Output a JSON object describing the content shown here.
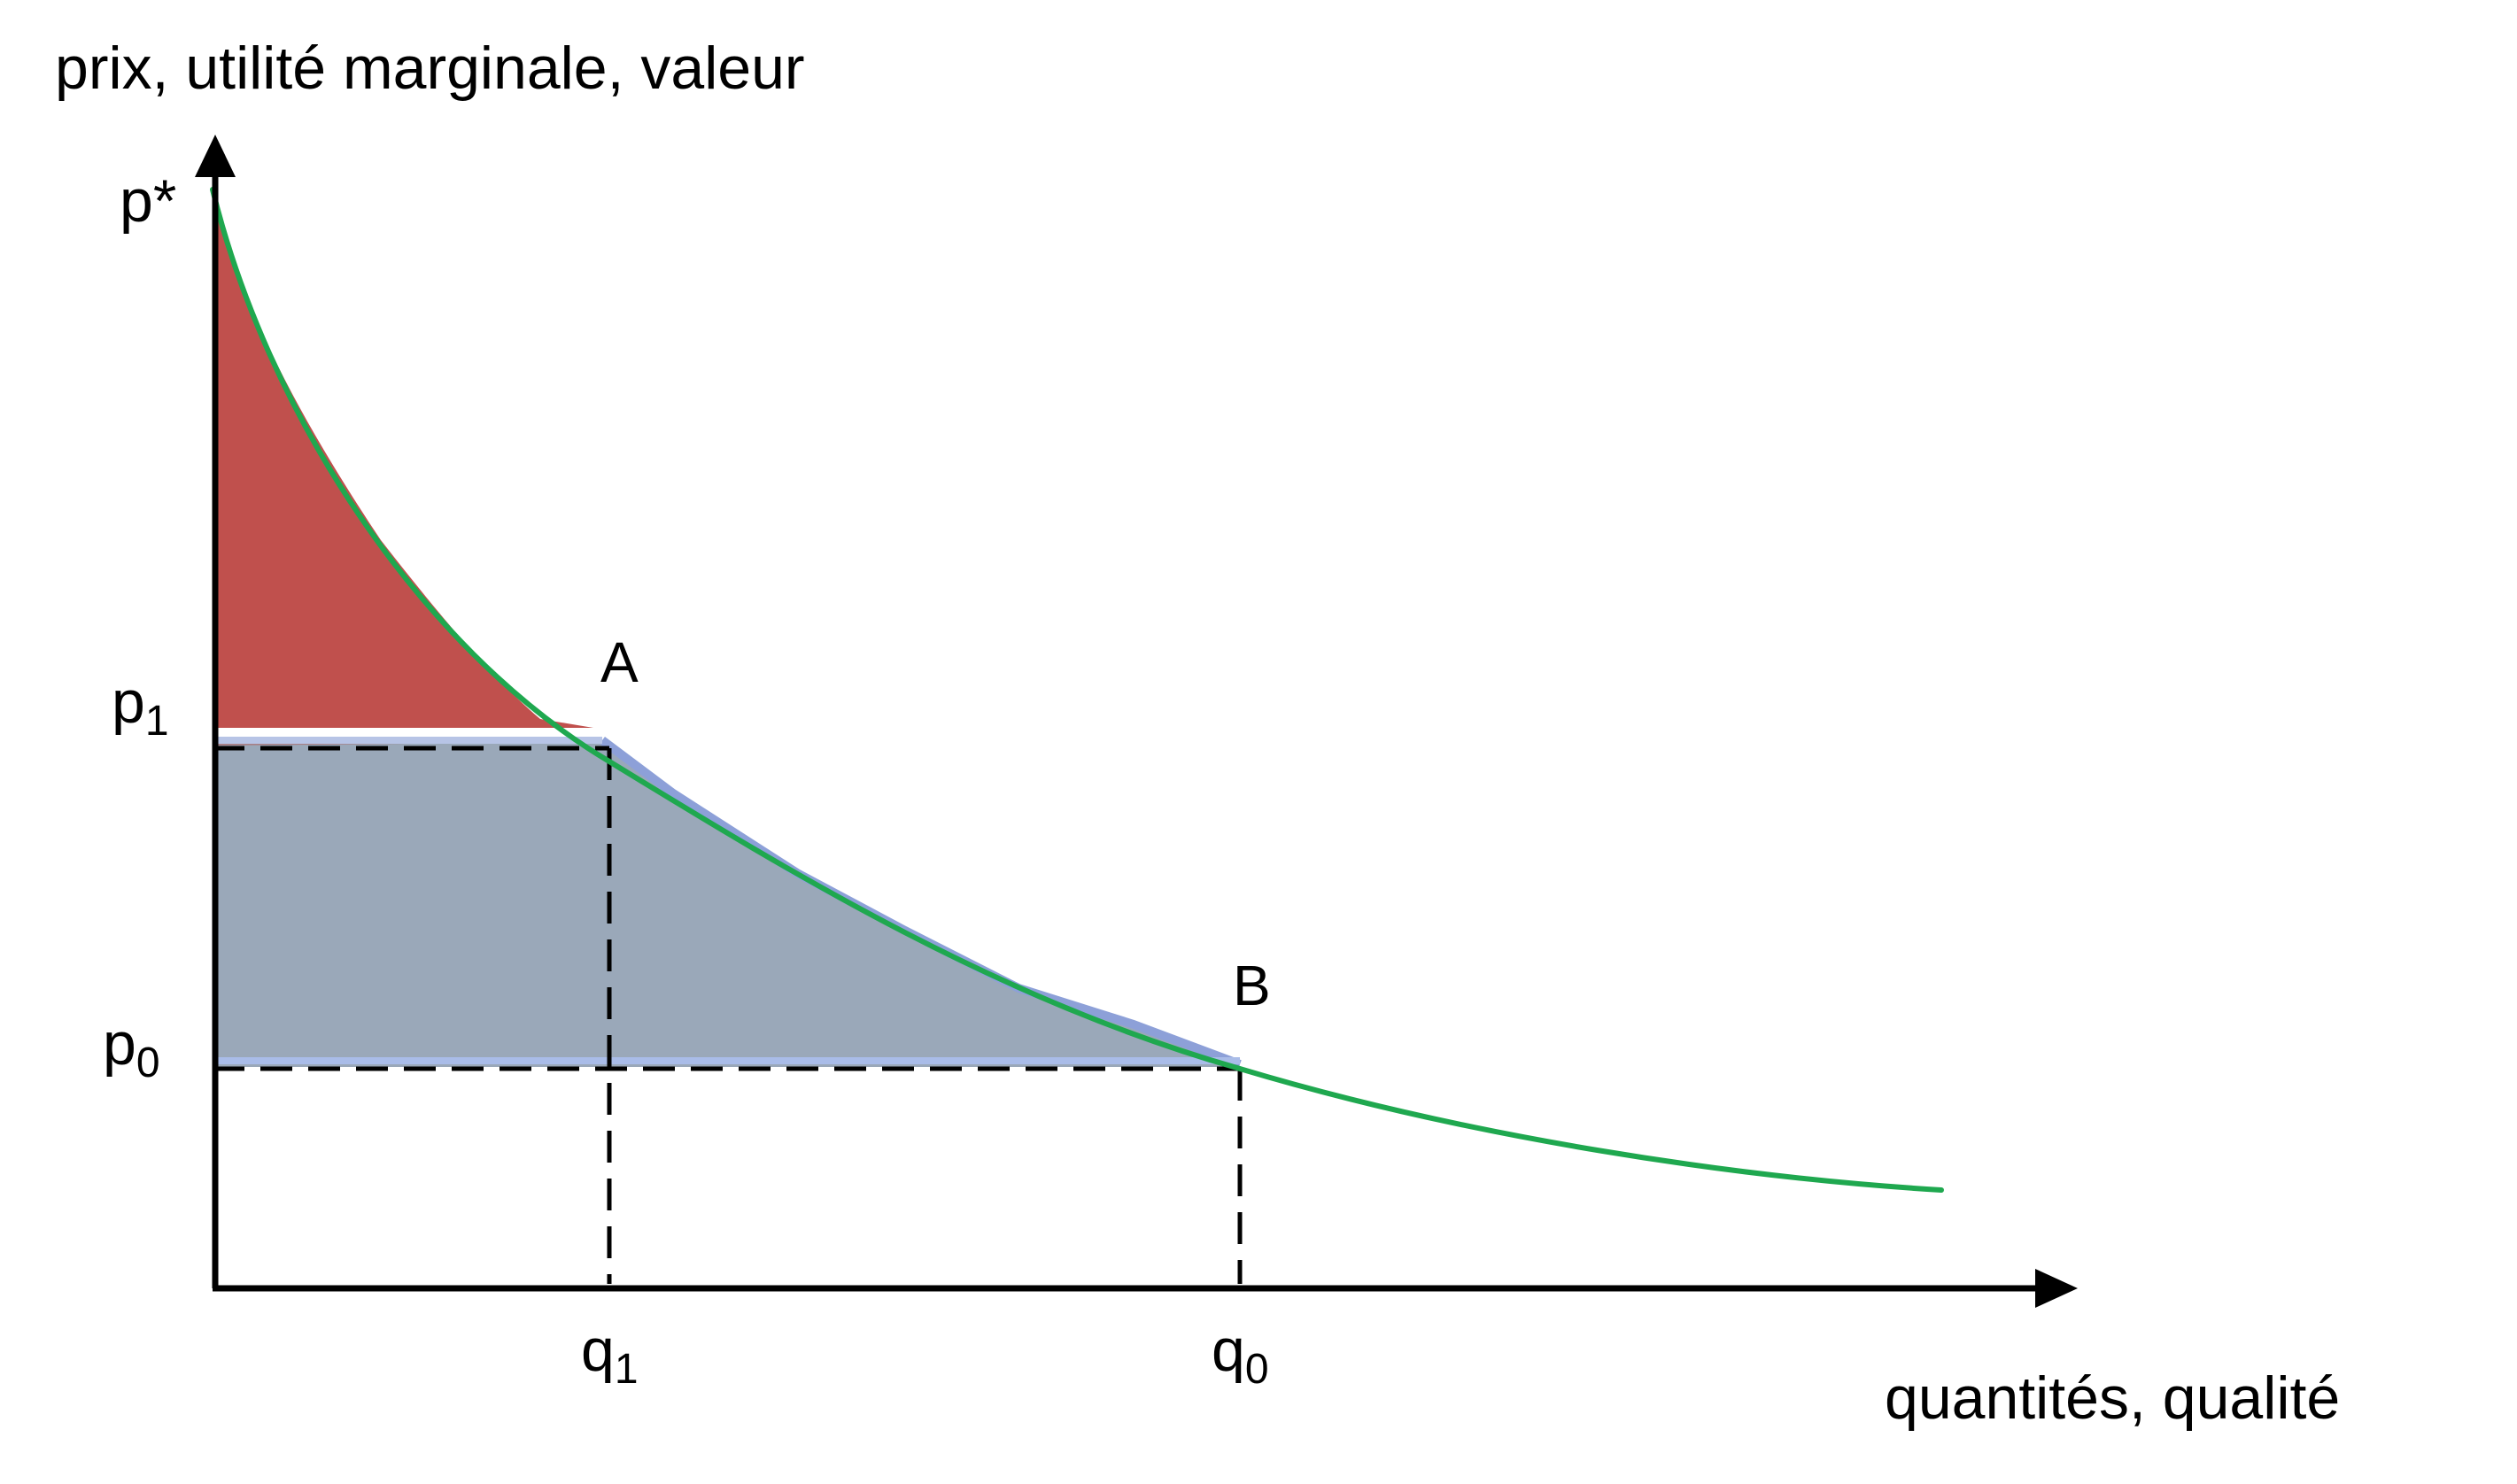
{
  "labels": {
    "y_axis_title": "prix, utilité marginale, valeur",
    "x_axis_title": "quantités, qualité",
    "p_star": "p*",
    "p1": "p",
    "p1_sub": "1",
    "p0": "p",
    "p0_sub": "0",
    "q1": "q",
    "q1_sub": "1",
    "q0": "q",
    "q0_sub": "0",
    "point_a": "A",
    "point_b": "B"
  },
  "colors": {
    "curve": "#1fa84f",
    "consumer_surplus_fill": "#c0504d",
    "gain_area_fill": "#9aa8b9",
    "gain_area_edge": "#8da0d8",
    "axes": "#000000"
  }
}
